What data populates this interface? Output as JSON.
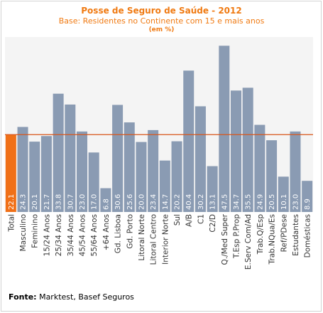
{
  "chart_data": {
    "type": "bar",
    "title": "Posse de Seguro de Saúde - 2012",
    "subtitle": "Base: Residentes no Continente com 15 e mais anos",
    "unit": "(em %)",
    "categories": [
      "Total",
      "Masculino",
      "Feminino",
      "15/24 Anos",
      "25/34 Anos",
      "35/44 Anos",
      "45/54 Anos",
      "55/64 Anos",
      "+64 Anos",
      "Gd. Lisboa",
      "Gd. Porto",
      "Litoral Norte",
      "Litoral Centro",
      "Interior Norte",
      "Sul",
      "A/B",
      "C1",
      "C2/D",
      "Q./Med Super",
      "T.Esp P.Prop",
      "E.Serv Com/Ad",
      "Trab.Q/Esp",
      "Trab.NQua/Es",
      "Ref/PDese",
      "Estudantes",
      "Domésticas"
    ],
    "values": [
      22.1,
      24.3,
      20.1,
      21.7,
      33.8,
      30.7,
      23.0,
      17.0,
      6.8,
      30.6,
      25.6,
      20.0,
      23.4,
      14.7,
      20.2,
      40.4,
      30.2,
      13.1,
      47.5,
      34.7,
      35.5,
      24.9,
      20.5,
      10.1,
      23.0,
      8.9
    ],
    "value_labels": [
      "22.1",
      "24.3",
      "20.1",
      "21.7",
      "33.8",
      "30.7",
      "23.0",
      "17.0",
      "6.8",
      "30.6",
      "25.6",
      "20.0",
      "23.4",
      "14.7",
      "20.2",
      "40.4",
      "30.2",
      "13.1",
      "47.5",
      "34.7",
      "35.5",
      "24.9",
      "20.5",
      "10.1",
      "23.0",
      "8.9"
    ],
    "highlight_index": 0,
    "reference_value": 22.1,
    "ylim": [
      0,
      50
    ],
    "grid": false,
    "legend": "none",
    "colors": {
      "bar": "#8a9bb3",
      "highlight": "#f07018",
      "reference_line": "#d9561a",
      "plot_background": "#f4f4f4",
      "title": "#f07a12"
    }
  },
  "source": {
    "label": "Fonte:",
    "text": " Marktest, Basef Seguros"
  }
}
